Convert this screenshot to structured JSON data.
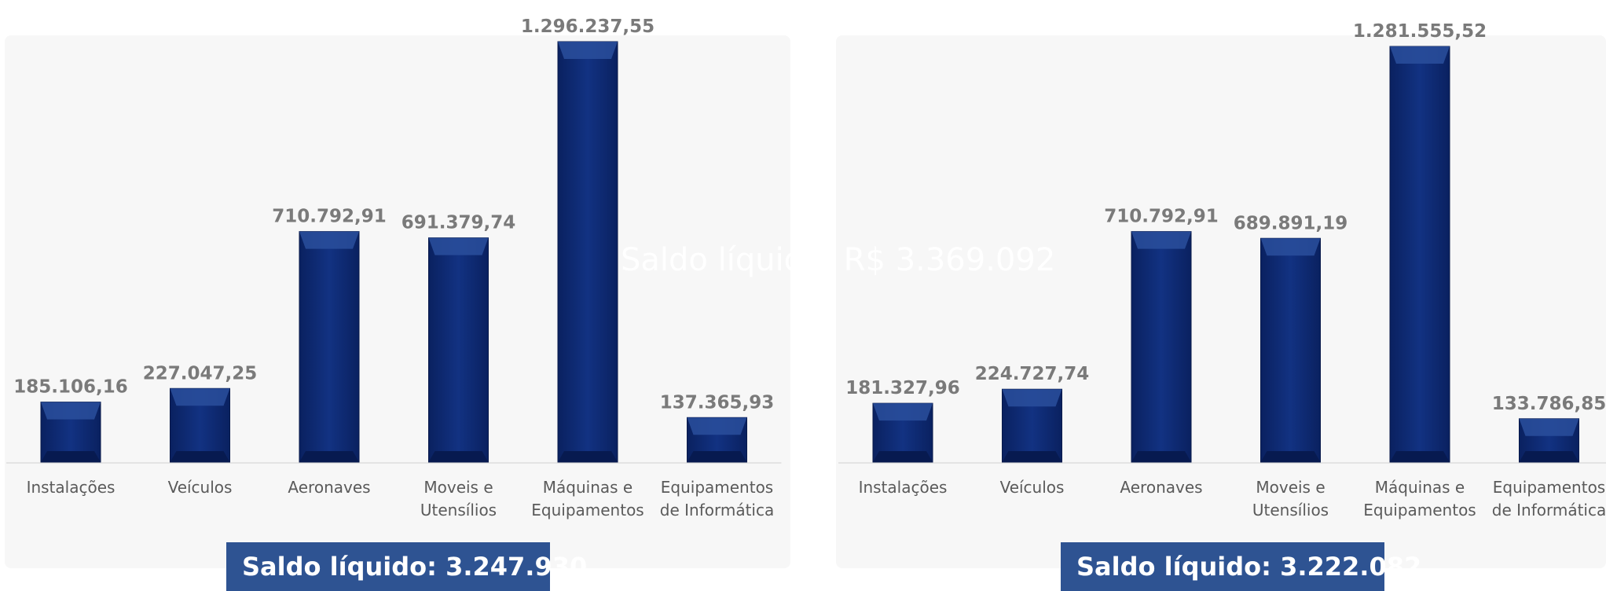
{
  "watermark": "Saldo líquido: R$ 3.369.092",
  "colors": {
    "bar": "#0d2a6e",
    "bar_light": "#2a4f9c",
    "value_text": "#7a7a7a",
    "label_text": "#5a5a5a",
    "saldo_bg": "#2e5392"
  },
  "chart_data": [
    {
      "type": "bar",
      "categories": [
        [
          "Instalações"
        ],
        [
          "Veículos"
        ],
        [
          "Aeronaves"
        ],
        [
          "Moveis e",
          "Utensílios"
        ],
        [
          "Máquinas e",
          "Equipamentos"
        ],
        [
          "Equipamentos",
          "de Informática"
        ]
      ],
      "values": [
        185106.16,
        227047.25,
        710792.91,
        691379.74,
        1296237.55,
        137365.93
      ],
      "value_labels": [
        "185.106,16",
        "227.047,25",
        "710.792,91",
        "691.379,74",
        "1.296.237,55",
        "137.365,93"
      ],
      "ylim": [
        0,
        1296237.55
      ],
      "grid": false,
      "saldo": "Saldo líquido: 3.247.930"
    },
    {
      "type": "bar",
      "categories": [
        [
          "Instalações"
        ],
        [
          "Veículos"
        ],
        [
          "Aeronaves"
        ],
        [
          "Moveis e",
          "Utensílios"
        ],
        [
          "Máquinas e",
          "Equipamentos"
        ],
        [
          "Equipamentos",
          "de Informática"
        ]
      ],
      "values": [
        181327.96,
        224727.74,
        710792.91,
        689891.19,
        1281555.52,
        133786.85
      ],
      "value_labels": [
        "181.327,96",
        "224.727,74",
        "710.792,91",
        "689.891,19",
        "1.281.555,52",
        "133.786,85"
      ],
      "ylim": [
        0,
        1296237.55
      ],
      "grid": false,
      "saldo": "Saldo líquido: 3.222.082"
    }
  ]
}
